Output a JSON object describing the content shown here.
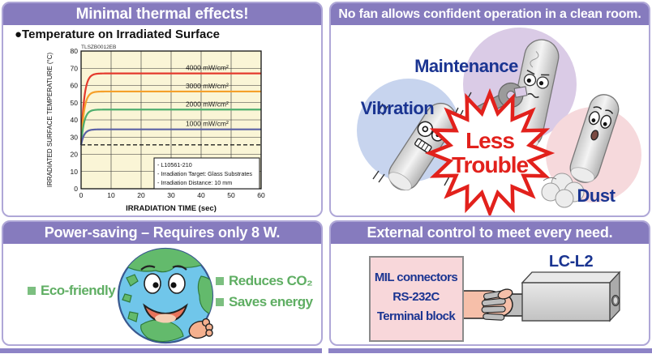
{
  "page": {
    "accent_header_color": "#867bbe",
    "panel_border_color": "#afa7d7",
    "navy_text_color": "#1a3491",
    "green_text_color": "#5fae63",
    "burst_red_color": "#e2211c",
    "footer_bar_color": "#8d83c6"
  },
  "panels": {
    "thermal": {
      "title": "Minimal thermal effects!",
      "heading": "●Temperature on Irradiated Surface"
    },
    "no_fan": {
      "title": "No fan allows confident operation in a clean room.",
      "label_maintenance": "Maintenance",
      "label_vibration": "Vibration",
      "label_dust": "Dust",
      "burst": {
        "line1": "Less",
        "line2": "Trouble"
      }
    },
    "power": {
      "title": "Power-saving – Requires only 8 W.",
      "bullet_left": "Eco-friendly",
      "bullet_right1": "Reduces CO₂",
      "bullet_right2": "Saves energy"
    },
    "external": {
      "title": "External control to meet every need.",
      "connector_line1": "MIL connectors",
      "connector_line2": "RS-232C",
      "connector_line3": "Terminal block",
      "device_label": "LC-L2"
    }
  },
  "chart_data": {
    "type": "line",
    "title": "Temperature on Irradiated Surface",
    "figure_code": "TLSZB0012EB",
    "xlabel": "IRRADIATION TIME  (sec)",
    "ylabel": "IRRADIATED SURFACE TEMPERATURE  (°C)",
    "xlim": [
      0,
      60
    ],
    "ylim": [
      0,
      80
    ],
    "xticks": [
      0,
      10,
      20,
      30,
      40,
      50,
      60
    ],
    "yticks": [
      0,
      10,
      20,
      30,
      40,
      50,
      60,
      70,
      80
    ],
    "grid": true,
    "plot_background": "#faf5d6",
    "start_value": 25.5,
    "rise_time_constant_sec": 1.0,
    "series": [
      {
        "name": "4000 mW/cm²",
        "steady_state": 67,
        "color": "#e43a2d"
      },
      {
        "name": "3000 mW/cm²",
        "steady_state": 56.5,
        "color": "#f5a02a"
      },
      {
        "name": "2000 mW/cm²",
        "steady_state": 46,
        "color": "#4fae6e"
      },
      {
        "name": "1000 mW/cm²",
        "steady_state": 34.5,
        "color": "#5b62a6"
      }
    ],
    "dashed_baseline": 25.5,
    "notes": [
      "- L10561-210",
      "- Irradiation Target: Glass Substrates",
      "- Irradiation Distance: 10 mm"
    ]
  }
}
